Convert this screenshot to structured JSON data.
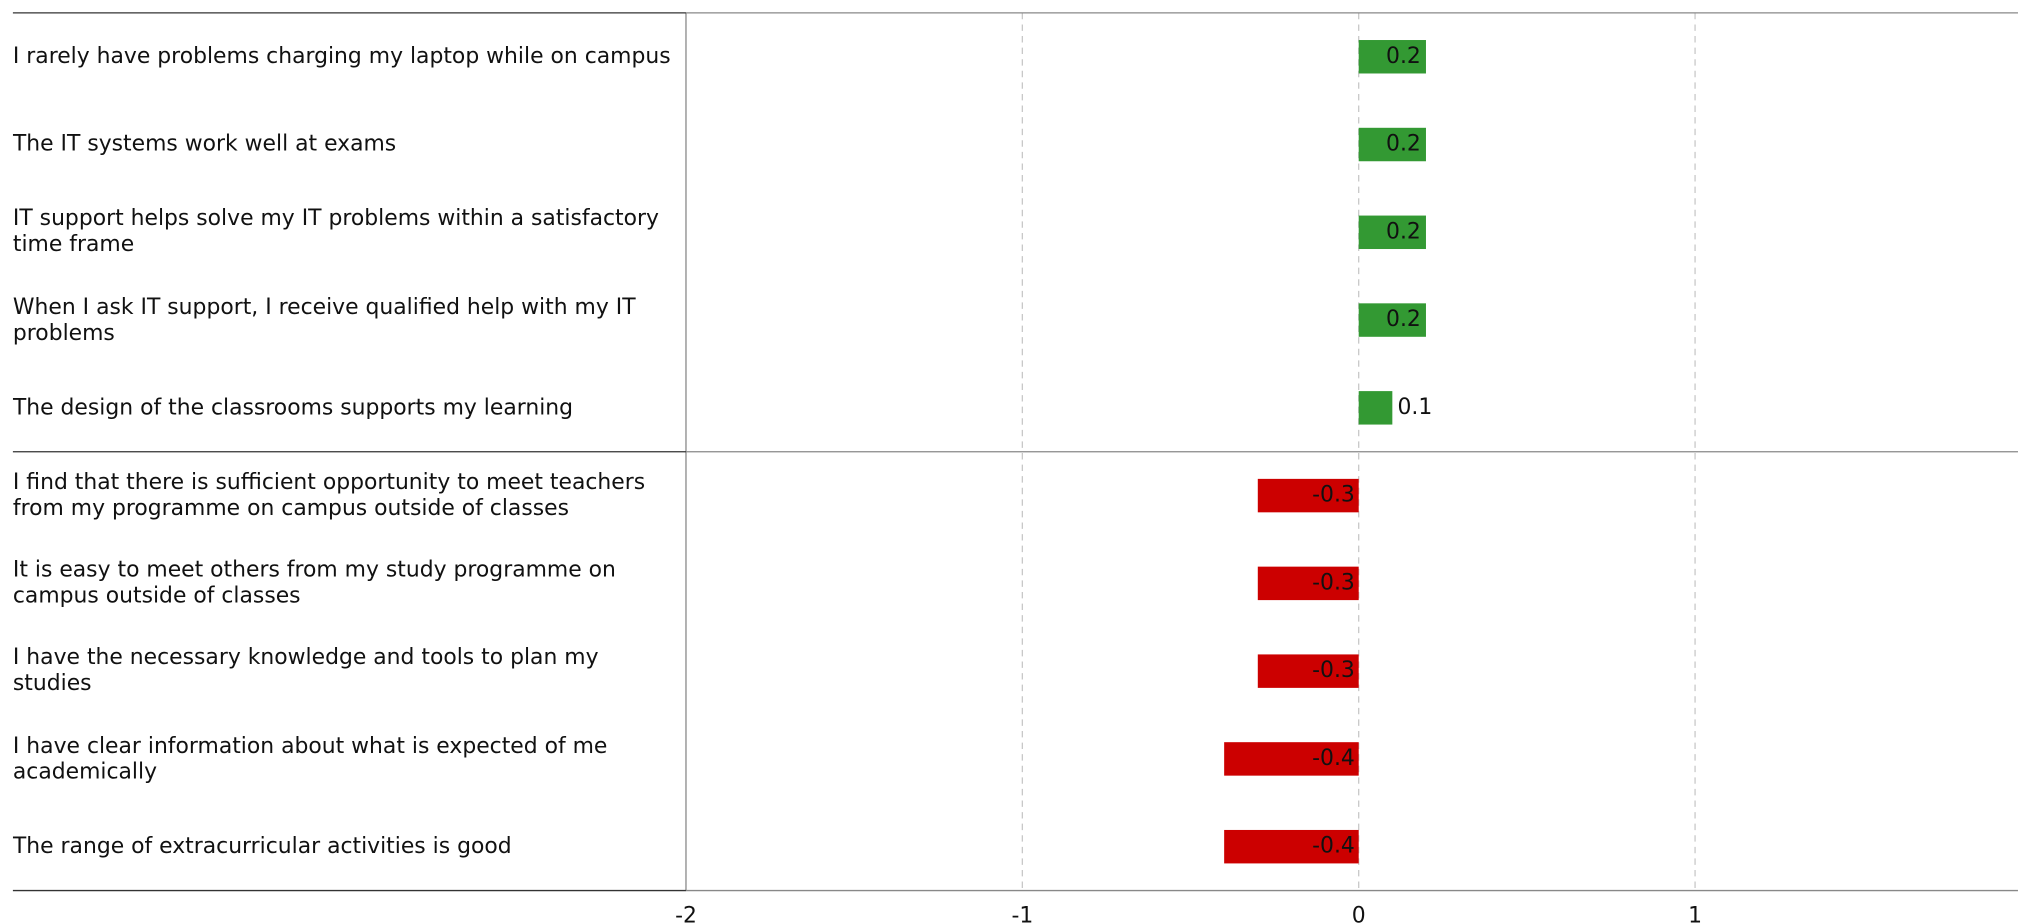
{
  "chart_data": {
    "type": "barh",
    "categories": [
      "I rarely have problems charging my laptop while on campus",
      "The IT systems work well at exams",
      "IT support helps solve my IT problems within a satisfactory time frame",
      "When I ask IT support, I receive qualified help with my IT problems",
      "The design of the classrooms supports my learning",
      "I find that there is sufficient opportunity to meet teachers from my programme on campus outside of classes",
      "It is easy to meet others from my study programme on campus outside of classes",
      "I have the necessary knowledge and tools to plan my studies",
      "I have clear information about what is expected of me academically",
      "The range of extracurricular activities is good"
    ],
    "values": [
      0.2,
      0.2,
      0.2,
      0.2,
      0.1,
      -0.3,
      -0.3,
      -0.3,
      -0.4,
      -0.4
    ],
    "positive_color": "#339933",
    "negative_color": "#cc0000",
    "xlim": [
      -2,
      1.96
    ],
    "xticks": [
      -2,
      -1,
      0,
      1
    ],
    "grid": true
  }
}
